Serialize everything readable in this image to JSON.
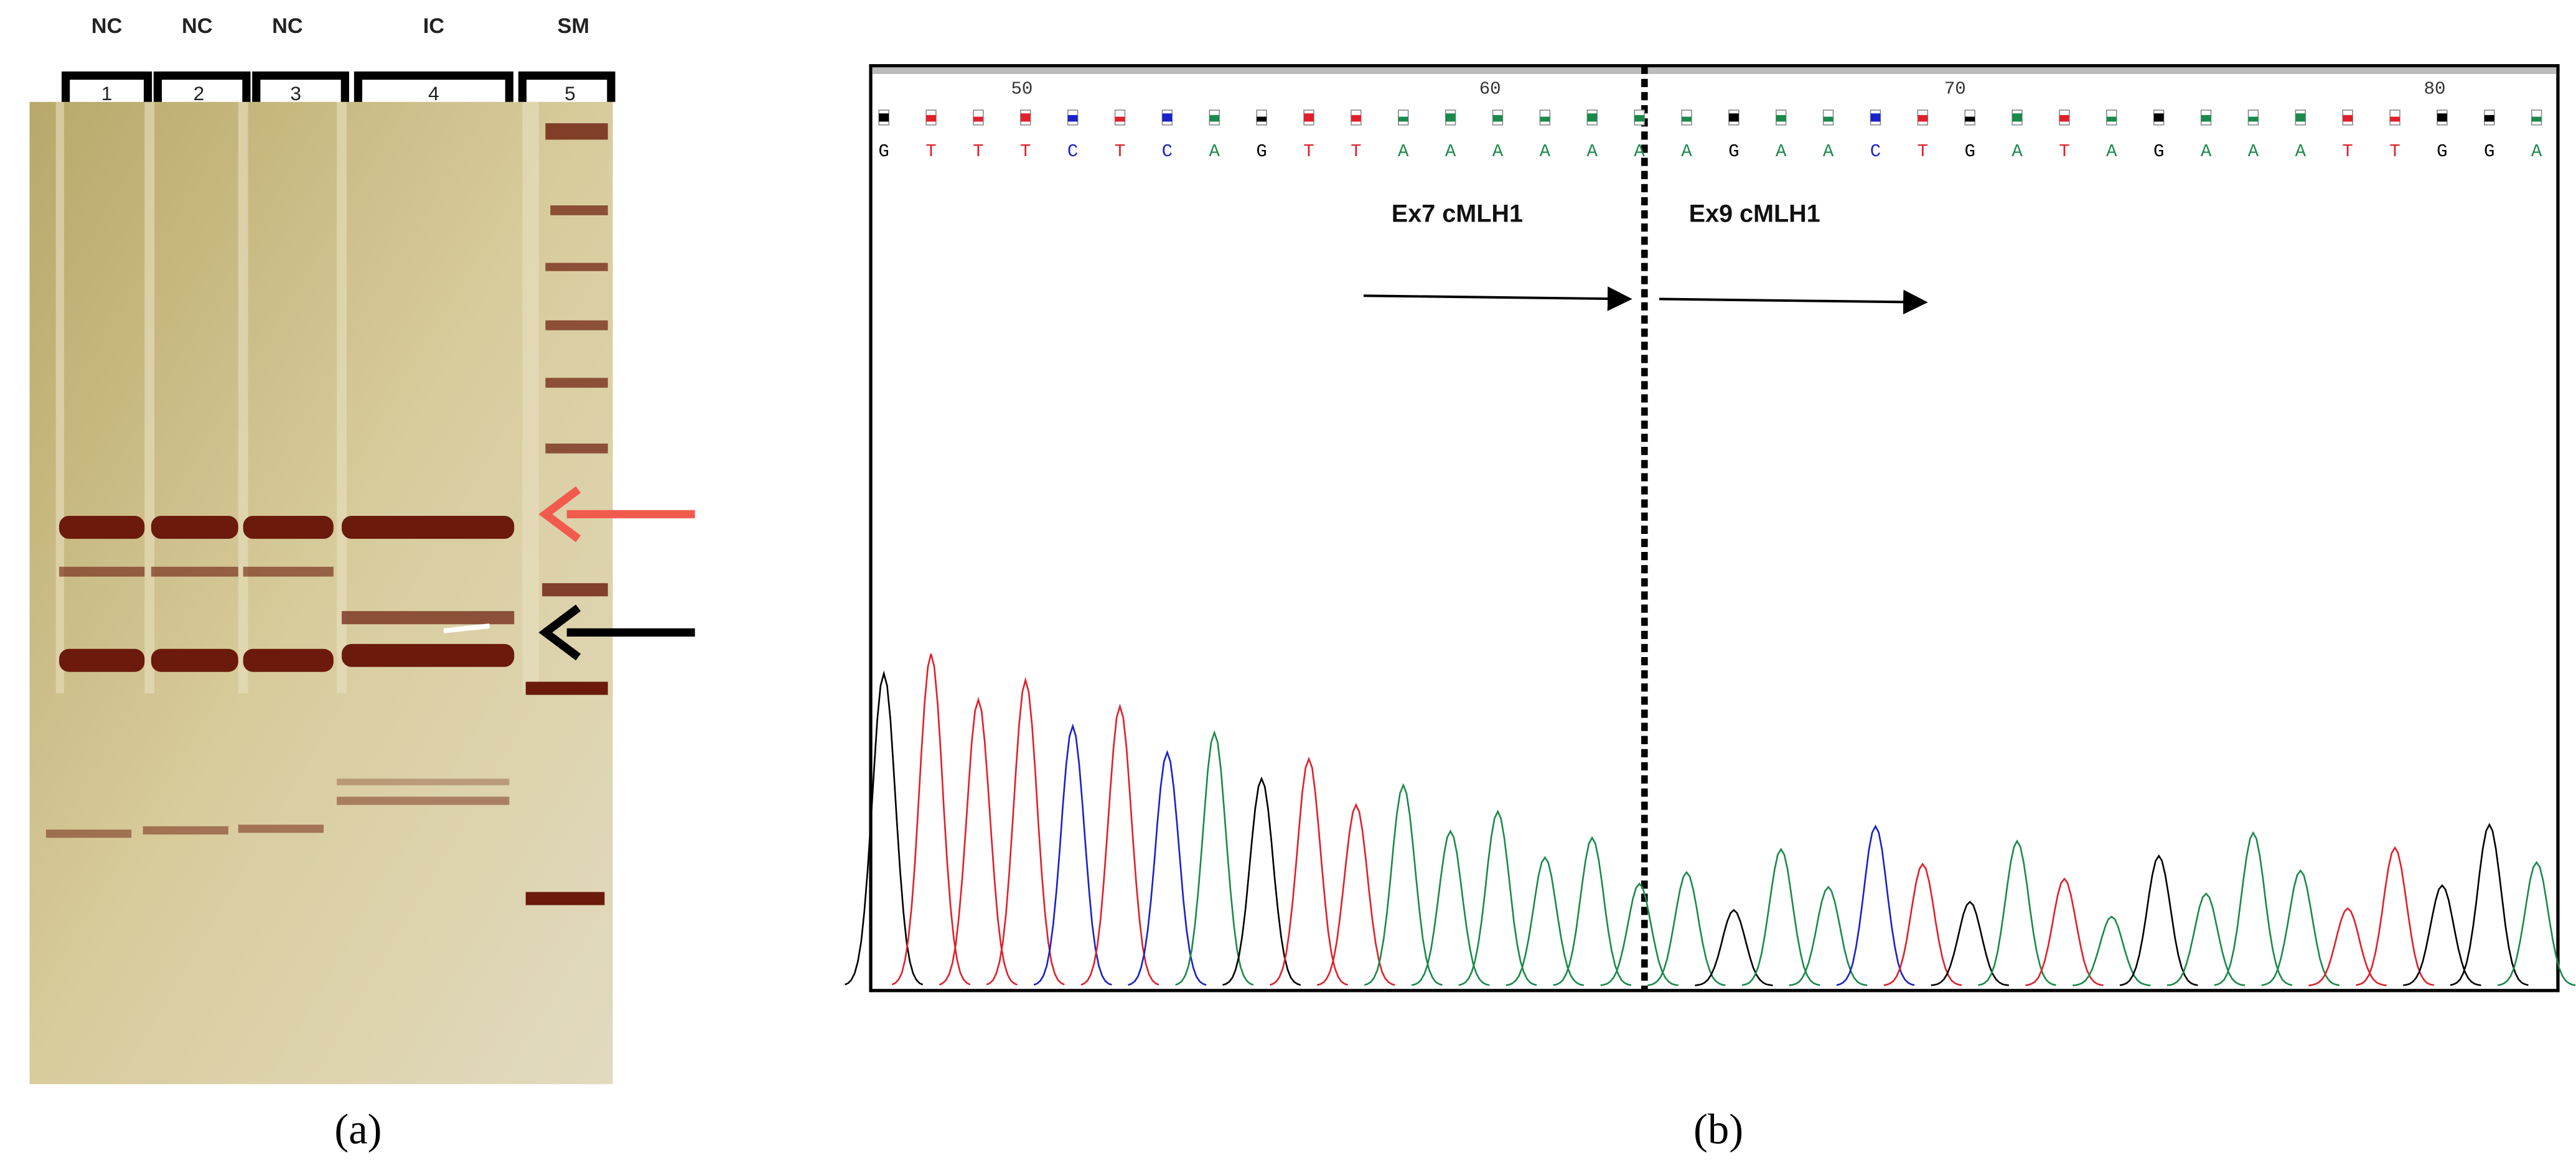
{
  "panel_a": {
    "lane_groups": [
      "NC",
      "NC",
      "NC",
      "IC",
      "SM"
    ],
    "lane_numbers": [
      "1",
      "2",
      "3",
      "4",
      "5"
    ],
    "caption": "(a)"
  },
  "panel_b": {
    "positions": [
      "50",
      "60",
      "70",
      "80"
    ],
    "bases": [
      "G",
      "T",
      "T",
      "T",
      "C",
      "T",
      "C",
      "A",
      "G",
      "T",
      "T",
      "A",
      "A",
      "A",
      "A",
      "A",
      "A",
      "A",
      "G",
      "A",
      "A",
      "C",
      "T",
      "G",
      "A",
      "T",
      "A",
      "G",
      "A",
      "A",
      "A",
      "T",
      "T",
      "G",
      "G",
      "A"
    ],
    "annotations": [
      "Ex7 cMLH1",
      "Ex9 cMLH1"
    ],
    "caption": "(b)"
  }
}
